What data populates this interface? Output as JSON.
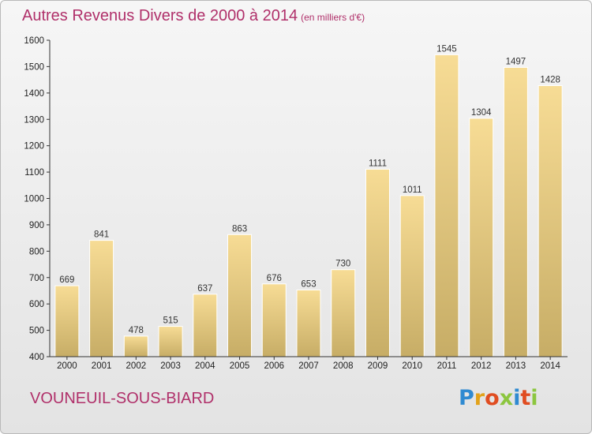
{
  "title": "Autres Revenus Divers de 2000 à 2014",
  "unit_note": "(en milliers d'€)",
  "commune": "VOUNEUIL-SOUS-BIARD",
  "brand": "Proxiti",
  "colors": {
    "title": "#b0306a",
    "bar_light": "#f7dc95",
    "bar_dark": "#c7ad66",
    "axis": "#333333",
    "logo": [
      "#2f8ad1",
      "#e2a21a",
      "#e04d21",
      "#8cc63f",
      "#2f8ad1",
      "#e04d21",
      "#8cc63f"
    ]
  },
  "chart_data": {
    "type": "bar",
    "title": "Autres Revenus Divers de 2000 à 2014",
    "subtitle": "(en milliers d'€)",
    "xlabel": "",
    "ylabel": "",
    "categories": [
      "2000",
      "2001",
      "2002",
      "2003",
      "2004",
      "2005",
      "2006",
      "2007",
      "2008",
      "2009",
      "2010",
      "2011",
      "2012",
      "2013",
      "2014"
    ],
    "values": [
      669,
      841,
      478,
      515,
      637,
      863,
      676,
      653,
      730,
      1111,
      1011,
      1545,
      1304,
      1497,
      1428
    ],
    "ylim": [
      400,
      1600
    ],
    "yticks": [
      400,
      500,
      600,
      700,
      800,
      900,
      1000,
      1100,
      1200,
      1300,
      1400,
      1500,
      1600
    ],
    "grid": false,
    "legend": "none"
  }
}
